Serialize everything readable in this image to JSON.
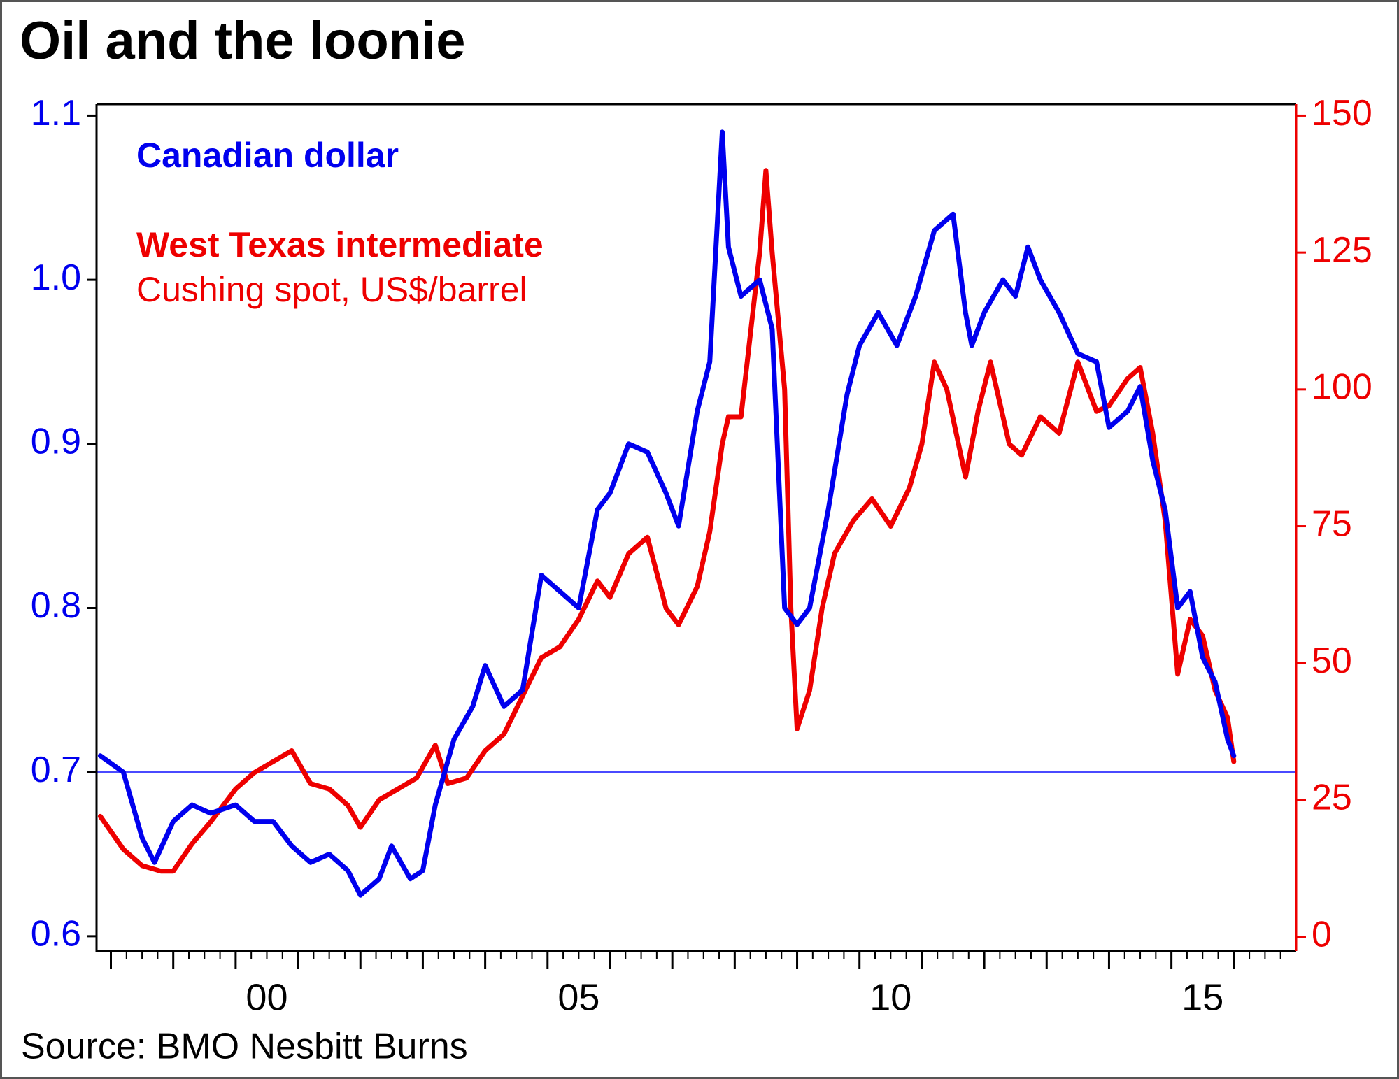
{
  "chart_data": {
    "type": "line",
    "title": "Oil and the loonie",
    "source": "Source: BMO Nesbitt Burns",
    "legend_note": "Cushing spot, US$/barrel",
    "xlim": [
      1997.77,
      2017
    ],
    "xticks": [
      {
        "value": 2000.5,
        "label": "00"
      },
      {
        "value": 2005.5,
        "label": "05"
      },
      {
        "value": 2010.5,
        "label": "10"
      },
      {
        "value": 2015.5,
        "label": "15"
      }
    ],
    "x_major_ticks": [
      1998,
      1999,
      2000,
      2001,
      2002,
      2003,
      2004,
      2005,
      2006,
      2007,
      2008,
      2009,
      2010,
      2011,
      2012,
      2013,
      2014,
      2015,
      2016
    ],
    "ylim": [
      0.591,
      1.107
    ],
    "yticks": [
      {
        "value": 0.6,
        "label": "0.6"
      },
      {
        "value": 0.7,
        "label": "0.7"
      },
      {
        "value": 0.8,
        "label": "0.8"
      },
      {
        "value": 0.9,
        "label": "0.9"
      },
      {
        "value": 1.0,
        "label": "1.0"
      },
      {
        "value": 1.1,
        "label": "1.1"
      }
    ],
    "y2lim": [
      -2.6,
      152.1
    ],
    "y2ticks": [
      0,
      25,
      50,
      75,
      100,
      125,
      150
    ],
    "hline": 0.7,
    "hline_color": "#4a4aff",
    "series": [
      {
        "name": "Canadian dollar",
        "color": "#0000ee",
        "x": [
          1997.83,
          1998.2,
          1998.5,
          1998.7,
          1999.0,
          1999.3,
          1999.6,
          2000.0,
          2000.3,
          2000.6,
          2000.9,
          2001.2,
          2001.5,
          2001.8,
          2002.0,
          2002.3,
          2002.5,
          2002.8,
          2003.0,
          2003.2,
          2003.5,
          2003.8,
          2004.0,
          2004.3,
          2004.6,
          2004.9,
          2005.2,
          2005.5,
          2005.8,
          2006.0,
          2006.3,
          2006.6,
          2006.9,
          2007.1,
          2007.4,
          2007.6,
          2007.8,
          2007.9,
          2008.1,
          2008.4,
          2008.6,
          2008.8,
          2009.0,
          2009.2,
          2009.5,
          2009.8,
          2010.0,
          2010.3,
          2010.6,
          2010.9,
          2011.2,
          2011.5,
          2011.7,
          2011.8,
          2012.0,
          2012.3,
          2012.5,
          2012.7,
          2012.9,
          2013.2,
          2013.5,
          2013.8,
          2014.0,
          2014.3,
          2014.5,
          2014.7,
          2014.9,
          2015.1,
          2015.3,
          2015.5,
          2015.7,
          2015.9,
          2016.0
        ],
        "values": [
          0.71,
          0.7,
          0.66,
          0.645,
          0.67,
          0.68,
          0.675,
          0.68,
          0.67,
          0.67,
          0.655,
          0.645,
          0.65,
          0.64,
          0.625,
          0.635,
          0.655,
          0.635,
          0.64,
          0.68,
          0.72,
          0.74,
          0.765,
          0.74,
          0.75,
          0.82,
          0.81,
          0.8,
          0.86,
          0.87,
          0.9,
          0.895,
          0.87,
          0.85,
          0.92,
          0.95,
          1.09,
          1.02,
          0.99,
          1.0,
          0.97,
          0.8,
          0.79,
          0.8,
          0.86,
          0.93,
          0.96,
          0.98,
          0.96,
          0.99,
          1.03,
          1.04,
          0.98,
          0.96,
          0.98,
          1.0,
          0.99,
          1.02,
          1.0,
          0.98,
          0.955,
          0.95,
          0.91,
          0.92,
          0.935,
          0.89,
          0.86,
          0.8,
          0.81,
          0.77,
          0.755,
          0.72,
          0.71
        ]
      },
      {
        "name": "West Texas intermediate",
        "color": "#ee0000",
        "axis": "y2",
        "x": [
          1997.83,
          1998.2,
          1998.5,
          1998.8,
          1999.0,
          1999.3,
          1999.6,
          2000.0,
          2000.3,
          2000.6,
          2000.9,
          2001.2,
          2001.5,
          2001.8,
          2002.0,
          2002.3,
          2002.6,
          2002.9,
          2003.2,
          2003.4,
          2003.7,
          2004.0,
          2004.3,
          2004.6,
          2004.9,
          2005.2,
          2005.5,
          2005.8,
          2006.0,
          2006.3,
          2006.6,
          2006.9,
          2007.1,
          2007.4,
          2007.6,
          2007.8,
          2007.9,
          2008.1,
          2008.4,
          2008.5,
          2008.6,
          2008.8,
          2008.9,
          2009.0,
          2009.2,
          2009.4,
          2009.6,
          2009.9,
          2010.2,
          2010.5,
          2010.8,
          2011.0,
          2011.2,
          2011.4,
          2011.7,
          2011.9,
          2012.1,
          2012.4,
          2012.6,
          2012.9,
          2013.2,
          2013.5,
          2013.8,
          2014.0,
          2014.3,
          2014.5,
          2014.7,
          2014.9,
          2015.1,
          2015.3,
          2015.5,
          2015.7,
          2015.9,
          2016.0
        ],
        "values": [
          22,
          16,
          13,
          12,
          12,
          17,
          21,
          27,
          30,
          32,
          34,
          28,
          27,
          24,
          20,
          25,
          27,
          29,
          35,
          28,
          29,
          34,
          37,
          44,
          51,
          53,
          58,
          65,
          62,
          70,
          73,
          60,
          57,
          64,
          74,
          90,
          95,
          95,
          125,
          140,
          125,
          100,
          60,
          38,
          45,
          60,
          70,
          76,
          80,
          75,
          82,
          90,
          105,
          100,
          84,
          96,
          105,
          90,
          88,
          95,
          92,
          105,
          96,
          97,
          102,
          104,
          92,
          76,
          48,
          58,
          55,
          45,
          40,
          32
        ]
      }
    ]
  }
}
